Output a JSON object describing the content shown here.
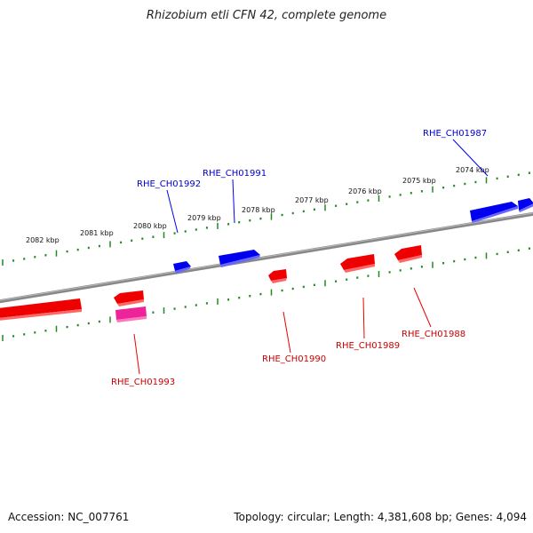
{
  "title": "Rhizobium etli CFN 42, complete genome",
  "footer": {
    "accession": "Accession: NC_007761",
    "summary": "Topology: circular; Length: 4,381,608 bp; Genes: 4,094"
  },
  "colors": {
    "forward": "#0000ee",
    "reverse": "#ee0000",
    "pseudo": "#ee2299",
    "ruler": "#228822",
    "backbone": "#888888"
  },
  "ticks": [
    "2082 kbp",
    "2081 kbp",
    "2080 kbp",
    "2079 kbp",
    "2078 kbp",
    "2077 kbp",
    "2076 kbp",
    "2075 kbp",
    "2074 kbp"
  ],
  "genes": [
    {
      "id": "RHE_CH01987",
      "strand": "+"
    },
    {
      "id": "RHE_CH01991",
      "strand": "+"
    },
    {
      "id": "RHE_CH01992",
      "strand": "+"
    },
    {
      "id": "RHE_CH01988",
      "strand": "-"
    },
    {
      "id": "RHE_CH01989",
      "strand": "-"
    },
    {
      "id": "RHE_CH01990",
      "strand": "-"
    },
    {
      "id": "RHE_CH01993",
      "strand": "-"
    }
  ]
}
